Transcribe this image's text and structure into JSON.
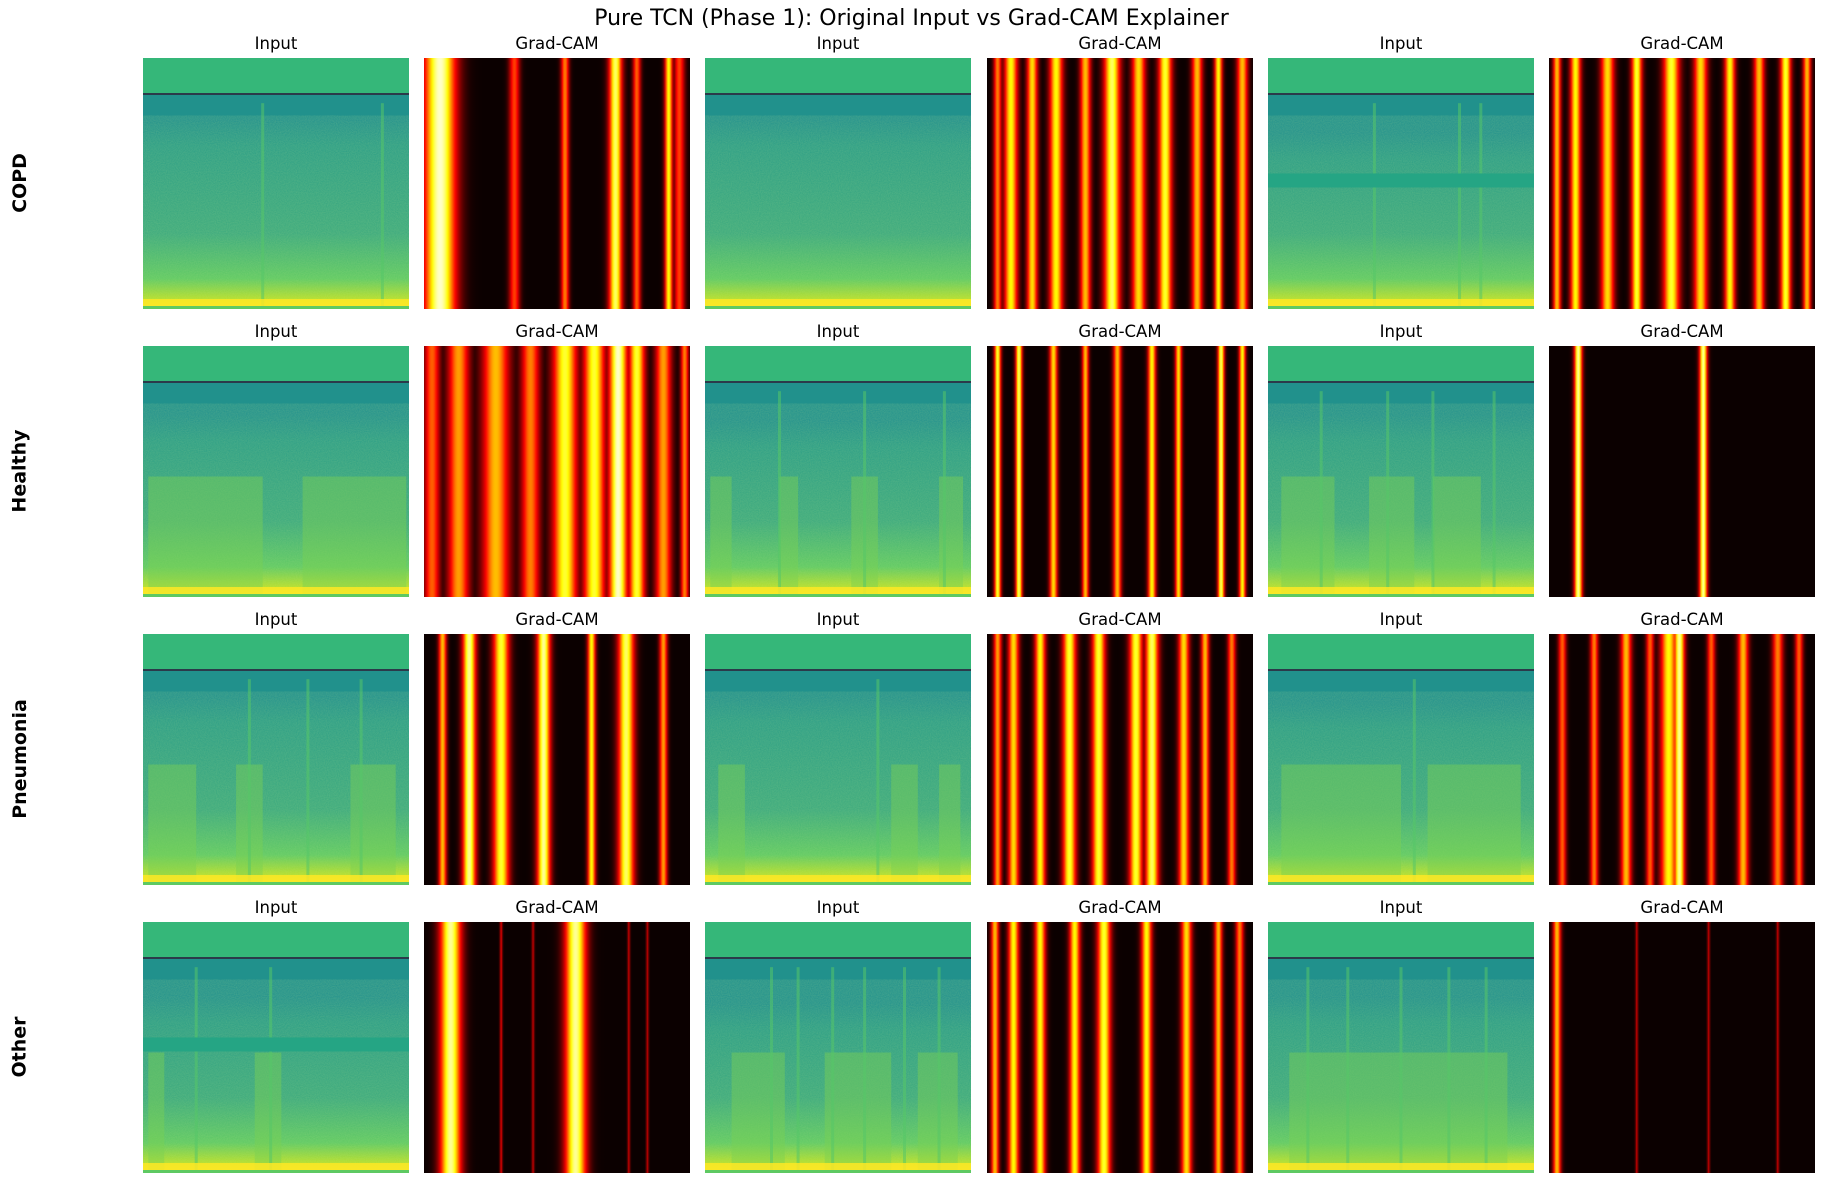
{
  "title": "Pure TCN (Phase 1): Original Input vs Grad-CAM Explainer",
  "colormaps": {
    "input": "viridis",
    "gradcam": "hot"
  },
  "colors": {
    "spectrogram_top_band": "#35b779",
    "spectrogram_body": "#21918c",
    "spectrogram_noise": "#5ec962",
    "spectrogram_bottom": "#fde725",
    "heat_dark": "#0b0000",
    "heat_mid": "#e61a00",
    "heat_bright": "#ffff80"
  },
  "rows": [
    {
      "label": "COPD",
      "panels": [
        {
          "type": "input",
          "title": "Input"
        },
        {
          "type": "gradcam",
          "title": "Grad-CAM"
        },
        {
          "type": "input",
          "title": "Input"
        },
        {
          "type": "gradcam",
          "title": "Grad-CAM"
        },
        {
          "type": "input",
          "title": "Input"
        },
        {
          "type": "gradcam",
          "title": "Grad-CAM"
        }
      ]
    },
    {
      "label": "Healthy",
      "panels": [
        {
          "type": "input",
          "title": "Input"
        },
        {
          "type": "gradcam",
          "title": "Grad-CAM"
        },
        {
          "type": "input",
          "title": "Input"
        },
        {
          "type": "gradcam",
          "title": "Grad-CAM"
        },
        {
          "type": "input",
          "title": "Input"
        },
        {
          "type": "gradcam",
          "title": "Grad-CAM"
        }
      ]
    },
    {
      "label": "Pneumonia",
      "panels": [
        {
          "type": "input",
          "title": "Input"
        },
        {
          "type": "gradcam",
          "title": "Grad-CAM"
        },
        {
          "type": "input",
          "title": "Input"
        },
        {
          "type": "gradcam",
          "title": "Grad-CAM"
        },
        {
          "type": "input",
          "title": "Input"
        },
        {
          "type": "gradcam",
          "title": "Grad-CAM"
        }
      ]
    },
    {
      "label": "Other",
      "panels": [
        {
          "type": "input",
          "title": "Input"
        },
        {
          "type": "gradcam",
          "title": "Grad-CAM"
        },
        {
          "type": "input",
          "title": "Input"
        },
        {
          "type": "gradcam",
          "title": "Grad-CAM"
        },
        {
          "type": "input",
          "title": "Input"
        },
        {
          "type": "gradcam",
          "title": "Grad-CAM"
        }
      ]
    }
  ]
}
